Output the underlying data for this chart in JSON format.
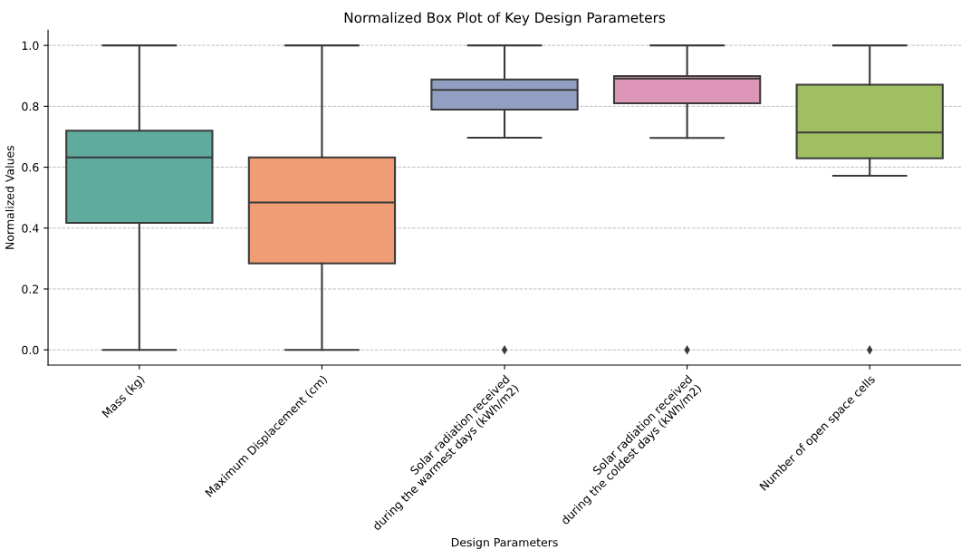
{
  "chart_data": {
    "type": "box",
    "title": "Normalized Box Plot of Key Design Parameters",
    "xlabel": "Design Parameters",
    "ylabel": "Normalized Values",
    "categories": [
      "Mass (kg)",
      "Maximum Displacement (cm)",
      "Solar radiation received\nduring the warmest days (kWh/m2)",
      "Solar radiation received\nduring the coldest days (kWh/m2)",
      "Number of open space cells"
    ],
    "colors": [
      "#5fab9e",
      "#f09c75",
      "#919fc3",
      "#dd96b8",
      "#9fbf62"
    ],
    "boxes": [
      {
        "low": 0,
        "q1": 0.417,
        "median": 0.632,
        "q3": 0.72,
        "high": 1
      },
      {
        "low": 0,
        "q1": 0.284,
        "median": 0.484,
        "q3": 0.632,
        "high": 1
      },
      {
        "low": 0.697,
        "q1": 0.789,
        "median": 0.854,
        "q3": 0.888,
        "high": 1,
        "outliers": [
          0
        ]
      },
      {
        "low": 0.696,
        "q1": 0.81,
        "median": 0.891,
        "q3": 0.899,
        "high": 1,
        "outliers": [
          0
        ]
      },
      {
        "low": 0.572,
        "q1": 0.629,
        "median": 0.714,
        "q3": 0.871,
        "high": 1,
        "outliers": [
          0
        ]
      }
    ],
    "ylim": [
      -0.05,
      1.05
    ],
    "yticks": [
      {
        "value": 0,
        "label": "0.0"
      },
      {
        "value": 0.2,
        "label": "0.2"
      },
      {
        "value": 0.4,
        "label": "0.4"
      },
      {
        "value": 0.6,
        "label": "0.6"
      },
      {
        "value": 0.8,
        "label": "0.8"
      },
      {
        "value": 1,
        "label": "1.0"
      }
    ],
    "grid": "y",
    "marker": "diamond"
  }
}
